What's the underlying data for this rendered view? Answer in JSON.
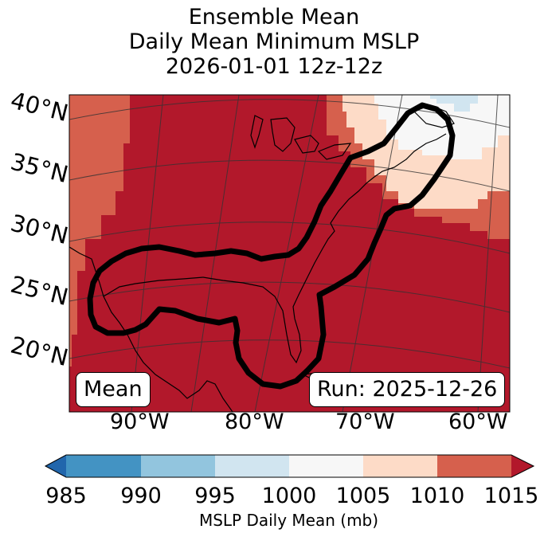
{
  "title": {
    "line1": "Ensemble Mean",
    "line2": "Daily Mean Minimum MSLP",
    "line3": "2026-01-01 12z-12z"
  },
  "map": {
    "lat_labels": [
      "40°N",
      "35°N",
      "30°N",
      "25°N",
      "20°N"
    ],
    "lon_labels": [
      "90°W",
      "80°W",
      "70°W",
      "60°W"
    ],
    "mean_label": "Mean",
    "run_label": "Run: 2025-12-26",
    "colors": {
      "lt_985": "#2166ac",
      "b985_990": "#4393c3",
      "b990_995": "#92c5de",
      "b995_1000": "#d1e5f0",
      "b1000_1005": "#f7f7f7",
      "b1005_1010": "#fddbc7",
      "b1010_1015": "#d6604d",
      "gt_1015": "#b2182b"
    }
  },
  "colorbar": {
    "ticks": [
      "985",
      "990",
      "995",
      "1000",
      "1005",
      "1010",
      "1015"
    ],
    "label": "MSLP Daily Mean (mb)"
  }
}
